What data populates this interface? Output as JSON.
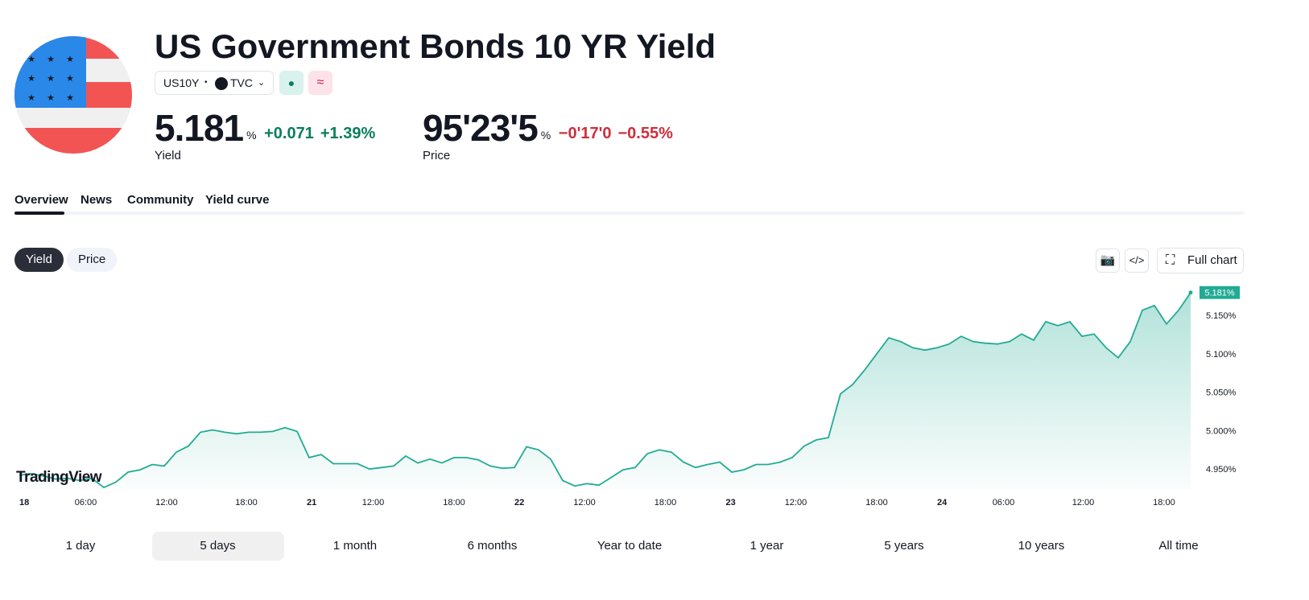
{
  "header": {
    "title": "US Government Bonds 10 YR Yield",
    "symbol": "US10Y",
    "exchange": "TVC"
  },
  "quotes": [
    {
      "value": "5.181",
      "unit": "%",
      "change": "+0.071",
      "change_percent": "+1.39%",
      "label": "Yield"
    },
    {
      "value": "95'23'5",
      "unit": "%",
      "change": "−0'17'0",
      "change_percent": "−0.55%",
      "label": "Price"
    }
  ],
  "tabs": [
    "Overview",
    "News",
    "Community",
    "Yield curve"
  ],
  "chart_toggle": [
    "Yield",
    "Price"
  ],
  "toolbar": {
    "full_chart": "Full chart"
  },
  "watermark": "TradingView",
  "chart_data": {
    "type": "area",
    "color": "#22ab94",
    "values": [
      4.943,
      4.945,
      4.942,
      4.938,
      4.939,
      4.936,
      4.939,
      4.927,
      4.934,
      4.947,
      4.95,
      4.957,
      4.955,
      4.973,
      4.981,
      4.999,
      5.002,
      4.999,
      4.997,
      4.999,
      4.999,
      5.0,
      5.005,
      5.0,
      4.966,
      4.97,
      4.958,
      4.958,
      4.958,
      4.951,
      4.953,
      4.955,
      4.968,
      4.959,
      4.964,
      4.959,
      4.966,
      4.966,
      4.963,
      4.955,
      4.952,
      4.953,
      4.98,
      4.976,
      4.964,
      4.936,
      4.929,
      4.932,
      4.93,
      4.94,
      4.95,
      4.953,
      4.971,
      4.976,
      4.973,
      4.96,
      4.953,
      4.957,
      4.96,
      4.947,
      4.95,
      4.957,
      4.957,
      4.96,
      4.966,
      4.981,
      4.989,
      4.992,
      5.049,
      5.061,
      5.08,
      5.101,
      5.122,
      5.117,
      5.109,
      5.106,
      5.109,
      5.114,
      5.124,
      5.117,
      5.115,
      5.114,
      5.117,
      5.127,
      5.119,
      5.143,
      5.138,
      5.143,
      5.124,
      5.127,
      5.109,
      5.096,
      5.117,
      5.158,
      5.164,
      5.14,
      5.158,
      5.181
    ],
    "last_value_label": "5.181%",
    "xlim": [
      -0.27,
      97.27
    ],
    "ylim": [
      4.925,
      5.187
    ],
    "yticks": [
      {
        "value": 4.95,
        "label": "4.950%"
      },
      {
        "value": 5.0,
        "label": "5.000%"
      },
      {
        "value": 5.05,
        "label": "5.050%"
      },
      {
        "value": 5.1,
        "label": "5.100%"
      },
      {
        "value": 5.15,
        "label": "5.150%"
      }
    ],
    "xticks": [
      {
        "value": 0,
        "label": "18"
      },
      {
        "value": 5.5,
        "label": "06:00"
      },
      {
        "value": 12.2,
        "label": "12:00"
      },
      {
        "value": 18.8,
        "label": "18:00"
      },
      {
        "value": 23.8,
        "label": "21"
      },
      {
        "value": 29.3,
        "label": "12:00"
      },
      {
        "value": 36,
        "label": "18:00"
      },
      {
        "value": 41,
        "label": "22"
      },
      {
        "value": 46.8,
        "label": "12:00"
      },
      {
        "value": 53.5,
        "label": "18:00"
      },
      {
        "value": 58.5,
        "label": "23"
      },
      {
        "value": 64.3,
        "label": "12:00"
      },
      {
        "value": 71,
        "label": "18:00"
      },
      {
        "value": 76,
        "label": "24"
      },
      {
        "value": 81.5,
        "label": "06:00"
      },
      {
        "value": 88.1,
        "label": "12:00"
      },
      {
        "value": 94.8,
        "label": "18:00"
      }
    ]
  },
  "ranges": [
    "1 day",
    "5 days",
    "1 month",
    "6 months",
    "Year to date",
    "1 year",
    "5 years",
    "10 years",
    "All time"
  ]
}
